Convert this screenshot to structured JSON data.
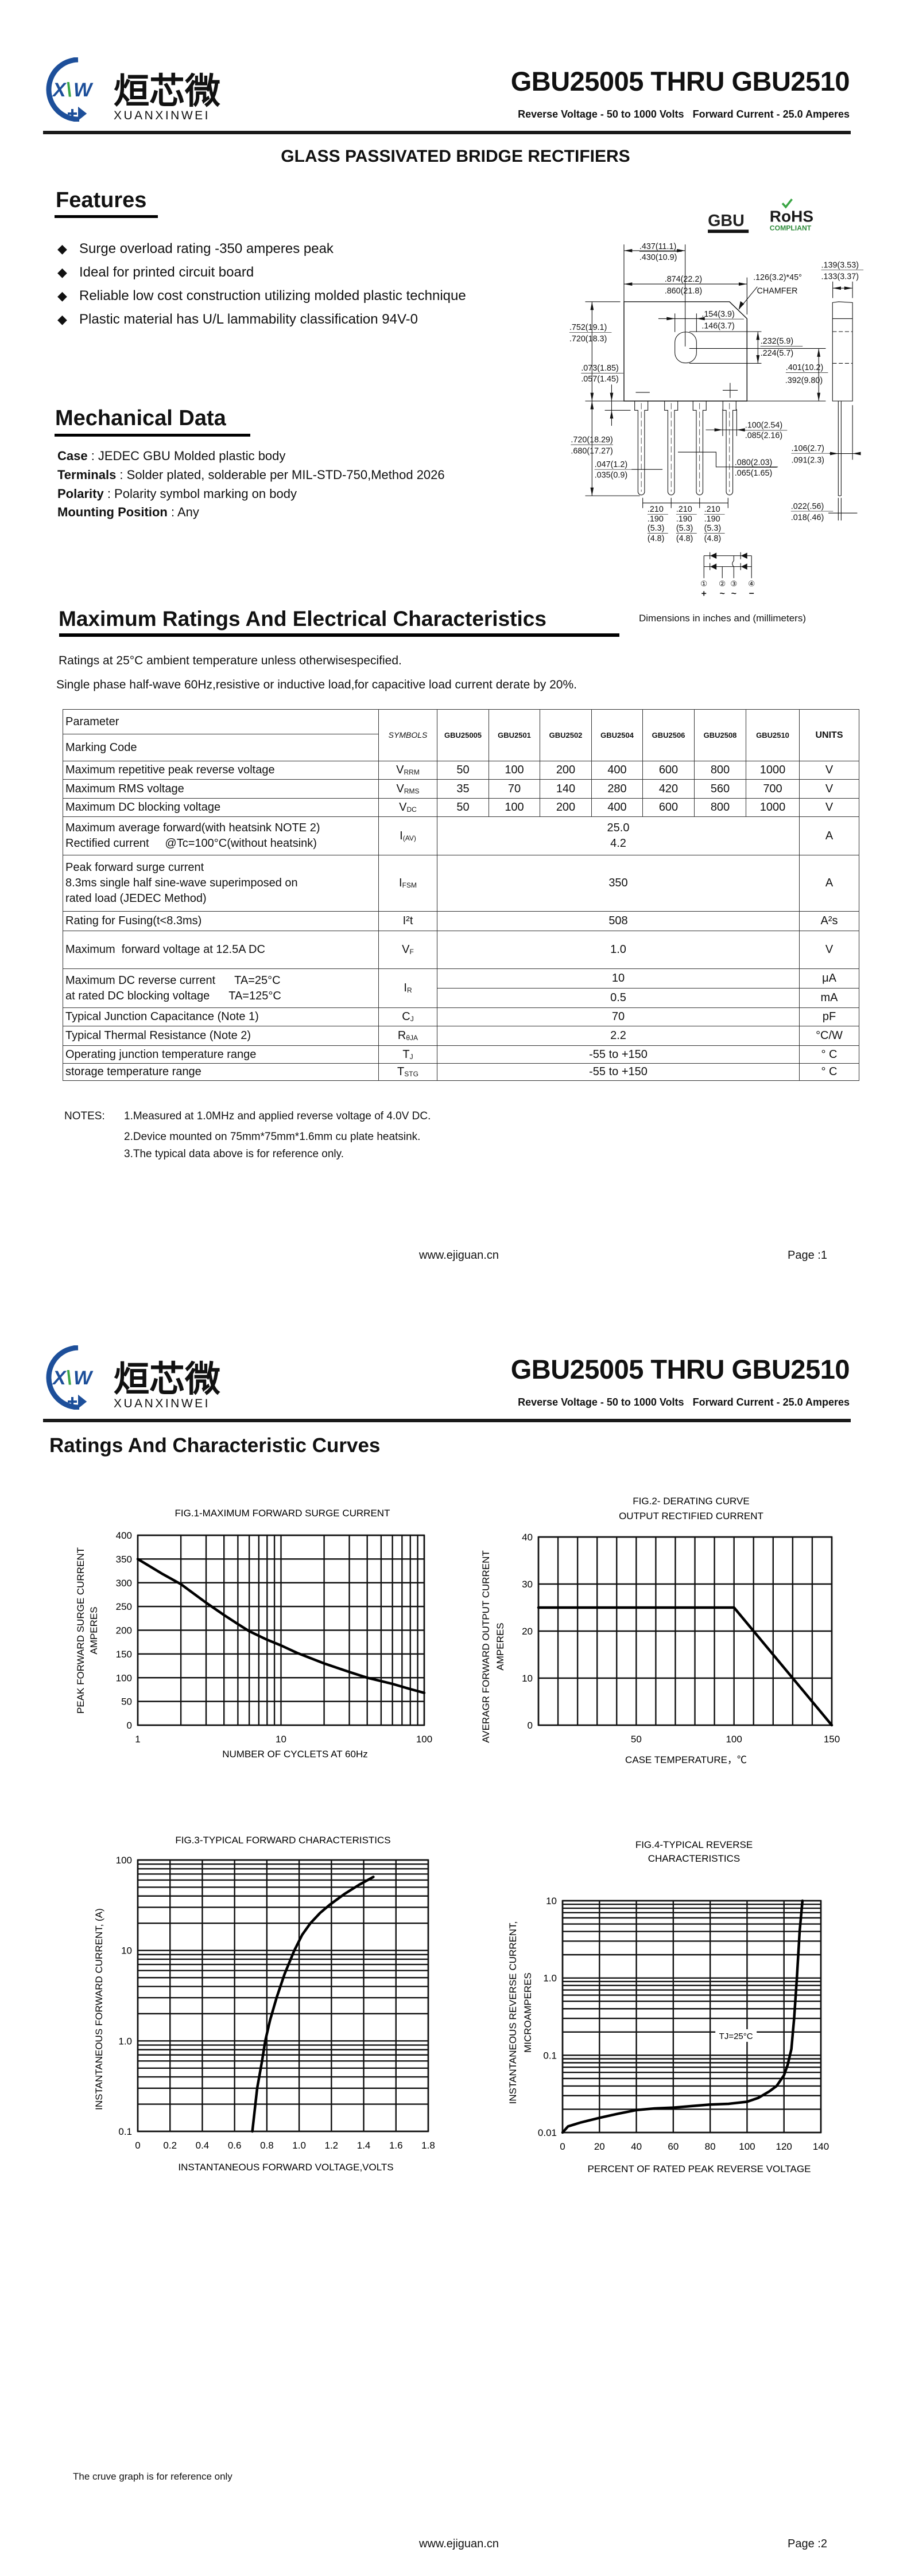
{
  "brand": {
    "logo_mark": "XXW",
    "logo_cn": "烜芯微",
    "logo_en": "XUANXINWEI",
    "blue": "#1d4f9a",
    "green": "#3aa544"
  },
  "header": {
    "title": "GBU25005 THRU GBU2510",
    "subtitle_voltage": "Reverse Voltage - 50 to 1000 Volts",
    "subtitle_current": "Forward Current - 25.0 Amperes"
  },
  "page1": {
    "doc_heading": "GLASS PASSIVATED  BRIDGE RECTIFIERS",
    "features": {
      "title": "Features",
      "bullet_icon": "diamond",
      "items": [
        "Surge overload rating -350 amperes peak",
        "Ideal for printed circuit board",
        "Reliable low cost construction utilizing molded plastic technique",
        "Plastic material has U/L lammability classification 94V-0"
      ]
    },
    "mechanical": {
      "title": "Mechanical Data",
      "items": [
        {
          "label": "Case",
          "value": " : JEDEC GBU Molded plastic body"
        },
        {
          "label": "Terminals",
          "value": " : Solder plated, solderable per MIL-STD-750,Method 2026"
        },
        {
          "label": "Polarity",
          "value": " : Polarity symbol  marking on body"
        },
        {
          "label": "Mounting Position",
          "value": " : Any"
        }
      ]
    },
    "package": {
      "label": "GBU",
      "rohs": "RoHS",
      "rohs_sub": "COMPLIANT",
      "dims": [
        ".437(11.1)",
        ".430(10.9)",
        ".874(22.2)",
        ".860(21.8)",
        ".126(3.2)*45°",
        "CHAMFER",
        ".139(3.53)",
        ".133(3.37)",
        ".154(3.9)",
        ".146(3.7)",
        ".752(19.1)",
        ".720(18.3)",
        ".073(1.85)",
        ".057(1.45)",
        ".232(5.9)",
        ".224(5.7)",
        ".401(10.2)",
        ".392(9.80)",
        ".100(2.54)",
        ".085(2.16)",
        ".720(18.29)",
        ".680(17.27)",
        ".047(1.2)",
        ".035(0.9)",
        ".080(2.03)",
        ".065(1.65)",
        ".106(2.7)",
        ".091(2.3)",
        ".022(.56)",
        ".018(.46)"
      ],
      "pitch": [
        ".210",
        ".190",
        "(5.3)",
        "(4.8)"
      ],
      "pins": [
        "①",
        "②",
        "③",
        "④"
      ],
      "pin_polarity": [
        "+",
        "~",
        "~",
        "−"
      ],
      "body_marks": [
        "−",
        "+"
      ],
      "dims_note": "Dimensions in inches and (millimeters)"
    },
    "ratings": {
      "title": "Maximum Ratings And Electrical Characteristics",
      "line1": "Ratings at 25°C ambient temperature unless otherwisespecified.",
      "line2": "Single phase half-wave 60Hz,resistive or inductive load,for capacitive load current derate by 20%."
    },
    "table": {
      "parameter": "Parameter",
      "marking_code": "Marking Code",
      "symbols": "SYMBOLS",
      "units": "UNITS",
      "models": [
        "GBU25005",
        "GBU2501",
        "GBU2502",
        "GBU2504",
        "GBU2506",
        "GBU2508",
        "GBU2510"
      ],
      "rows": [
        {
          "param": "Maximum repetitive peak reverse voltage",
          "sym": "V",
          "sub": "RRM",
          "values": [
            "50",
            "100",
            "200",
            "400",
            "600",
            "800",
            "1000"
          ],
          "unit": "V"
        },
        {
          "param": "Maximum RMS voltage",
          "sym": "V",
          "sub": "RMS",
          "values": [
            "35",
            "70",
            "140",
            "280",
            "420",
            "560",
            "700"
          ],
          "unit": "V"
        },
        {
          "param": "Maximum DC blocking voltage",
          "sym": "V",
          "sub": "DC",
          "values": [
            "50",
            "100",
            "200",
            "400",
            "600",
            "800",
            "1000"
          ],
          "unit": "V"
        },
        {
          "param": "Maximum average forward(with heatsink NOTE 2)\nRectified current     @Tc=100°C(without heatsink)",
          "sym": "I",
          "sub": "(AV)",
          "value": "25.0\n4.2",
          "unit": "A"
        },
        {
          "param": "Peak forward surge current\n8.3ms single half sine-wave superimposed on\nrated load (JEDEC Method)",
          "sym": "I",
          "sub": "FSM",
          "value": "350",
          "unit": "A"
        },
        {
          "param": "Rating for Fusing(t<8.3ms)",
          "sym": "I²t",
          "sub": "",
          "value": "508",
          "unit": "A²s"
        },
        {
          "param": "Maximum  forward voltage at 12.5A DC",
          "sym": "V",
          "sub": "F",
          "value": "1.0",
          "unit": "V"
        },
        {
          "param": "Maximum DC reverse current      TA=25°C\nat rated DC blocking voltage      TA=125°C",
          "sym": "I",
          "sub": "R",
          "value": "10",
          "value2": "0.5",
          "unit": "μA",
          "unit2": "mA"
        },
        {
          "param": "Typical Junction Capacitance (Note 1)",
          "sym": "C",
          "sub": "J",
          "value": "70",
          "unit": "pF"
        },
        {
          "param": "Typical Thermal Resistance (Note 2)",
          "sym": "R",
          "sub": "θJA",
          "value": "2.2",
          "unit": "°C/W"
        },
        {
          "param": "Operating junction temperature range",
          "sym": "T",
          "sub": "J",
          "value": "-55 to +150",
          "unit": "° C"
        },
        {
          "param": "storage temperature range",
          "sym": "T",
          "sub": "STG",
          "value": "-55 to +150",
          "unit": "° C"
        }
      ]
    },
    "notes": {
      "label": "NOTES:",
      "items": [
        "1.Measured at 1.0MHz and applied reverse voltage of 4.0V DC.",
        "2.Device mounted on 75mm*75mm*1.6mm cu plate heatsink.",
        "3.The typical data above is for reference only."
      ]
    },
    "footer": {
      "url": "www.ejiguan.cn",
      "page": "Page :1"
    }
  },
  "page2": {
    "heading": "Ratings And Characteristic Curves",
    "disclaimer": "The cruve graph is for reference only",
    "footer": {
      "url": "www.ejiguan.cn",
      "page": "Page :2"
    }
  },
  "chart_data": [
    {
      "type": "line",
      "title": [
        "FIG.1-MAXIMUM FORWARD SURGE CURRENT"
      ],
      "ylabel": [
        "PEAK FORWARD SURGE CURRENT",
        "AMPERES"
      ],
      "xlabel": "NUMBER OF CYCLETS AT 60Hz",
      "x_scale": "log",
      "y_scale": "linear",
      "xlim": [
        1,
        100
      ],
      "ylim": [
        0,
        400
      ],
      "x_ticks": [
        "1",
        "10",
        "100"
      ],
      "y_ticks": [
        "0",
        "50",
        "100",
        "150",
        "200",
        "250",
        "300",
        "350",
        "400"
      ],
      "grid": {
        "x": "log-minor",
        "y": 50
      },
      "series": [
        {
          "x": [
            1,
            1.5,
            2,
            3,
            4,
            5,
            6,
            8,
            10,
            13,
            20,
            30,
            40,
            60,
            80,
            100
          ],
          "y": [
            350,
            318,
            297,
            258,
            232,
            213,
            198,
            180,
            168,
            152,
            130,
            112,
            100,
            87,
            76,
            68
          ]
        }
      ]
    },
    {
      "type": "line",
      "title": [
        "FIG.2- DERATING CURVE",
        "OUTPUT RECTIFIED CURRENT"
      ],
      "ylabel": [
        "AVERAGR  FORWARD  OUTPUT CURRENT",
        "AMPERES"
      ],
      "xlabel": "CASE TEMPERATURE，℃",
      "x_scale": "linear",
      "y_scale": "linear",
      "xlim": [
        0,
        150
      ],
      "ylim": [
        0,
        40
      ],
      "x_ticks": [
        "50",
        "100",
        "150"
      ],
      "y_ticks": [
        "0",
        "10",
        "20",
        "30",
        "40"
      ],
      "grid": {
        "x": 10,
        "y": 10
      },
      "series": [
        {
          "x": [
            0,
            100,
            150
          ],
          "y": [
            25,
            25,
            0
          ]
        }
      ]
    },
    {
      "type": "line",
      "title": [
        "FIG.3-TYPICAL FORWARD CHARACTERISTICS"
      ],
      "ylabel": [
        "INSTANTANEOUS FORWARD CURRENT, (A)"
      ],
      "xlabel": "INSTANTANEOUS FORWARD VOLTAGE,VOLTS",
      "x_scale": "linear",
      "y_scale": "log",
      "xlim": [
        0,
        1.8
      ],
      "ylim": [
        0.1,
        100
      ],
      "x_ticks": [
        "0",
        "0.2",
        "0.4",
        "0.6",
        "0.8",
        "1.0",
        "1.2",
        "1.4",
        "1.6",
        "1.8"
      ],
      "y_ticks": [
        "0.1",
        "1.0",
        "10",
        "100"
      ],
      "grid": {
        "x": 0.2,
        "y": "log-minor"
      },
      "series": [
        {
          "x": [
            0.71,
            0.74,
            0.77,
            0.79,
            0.82,
            0.86,
            0.91,
            0.97,
            1.02,
            1.07,
            1.13,
            1.19,
            1.28,
            1.37,
            1.46
          ],
          "y": [
            0.1,
            0.3,
            0.6,
            1.0,
            1.7,
            3,
            5.5,
            10,
            15,
            20,
            26,
            32,
            42,
            53,
            65
          ]
        }
      ]
    },
    {
      "type": "line",
      "title": [
        "FIG.4-TYPICAL REVERSE",
        "CHARACTERISTICS"
      ],
      "ylabel": [
        "INSTANTANEOUS  REVERSE  CURRENT,",
        "MICROAMPERES"
      ],
      "xlabel": "PERCENT OF RATED PEAK REVERSE VOLTAGE",
      "x_scale": "linear",
      "y_scale": "log",
      "xlim": [
        0,
        140
      ],
      "ylim": [
        0.01,
        10
      ],
      "x_ticks": [
        "0",
        "20",
        "40",
        "60",
        "80",
        "100",
        "120",
        "140"
      ],
      "y_ticks": [
        "0.01",
        "0.1",
        "1.0",
        "10"
      ],
      "grid": {
        "x": 20,
        "y": "log-minor"
      },
      "annotations": [
        {
          "text": "TJ=25°C",
          "x": 94,
          "y": 0.18
        }
      ],
      "series": [
        {
          "x": [
            0,
            3,
            10,
            20,
            30,
            40,
            50,
            60,
            70,
            80,
            90,
            100,
            106,
            112,
            116,
            120,
            122,
            124,
            125.5,
            127,
            128.5,
            130
          ],
          "y": [
            0.01,
            0.012,
            0.0135,
            0.0155,
            0.0175,
            0.0195,
            0.0205,
            0.021,
            0.022,
            0.023,
            0.0235,
            0.025,
            0.028,
            0.034,
            0.04,
            0.055,
            0.075,
            0.12,
            0.3,
            1.0,
            4.0,
            10
          ]
        }
      ]
    }
  ]
}
